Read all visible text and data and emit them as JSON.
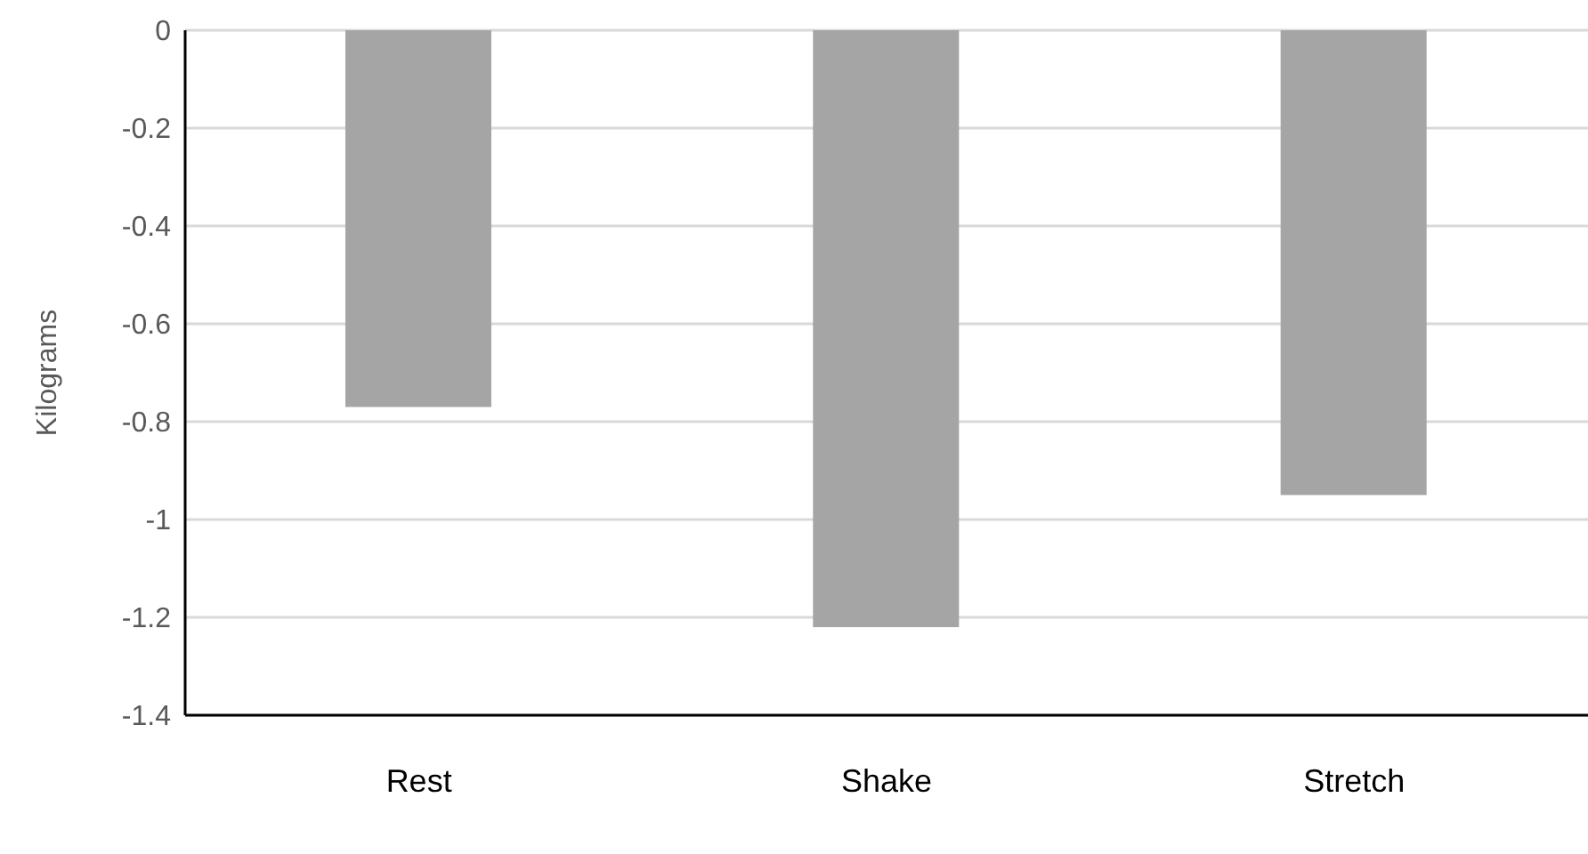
{
  "chart_data": {
    "type": "bar",
    "ylabel": "Kilograms",
    "categories": [
      "Rest",
      "Shake",
      "Stretch"
    ],
    "values": [
      -0.77,
      -1.22,
      -0.95
    ],
    "color": "#a5a5a5",
    "ylim": [
      -1.4,
      0
    ],
    "yticks": [
      -1.4,
      -1.2,
      -1,
      -0.8,
      -0.6,
      -0.4,
      -0.2,
      0
    ],
    "grid": "y"
  }
}
